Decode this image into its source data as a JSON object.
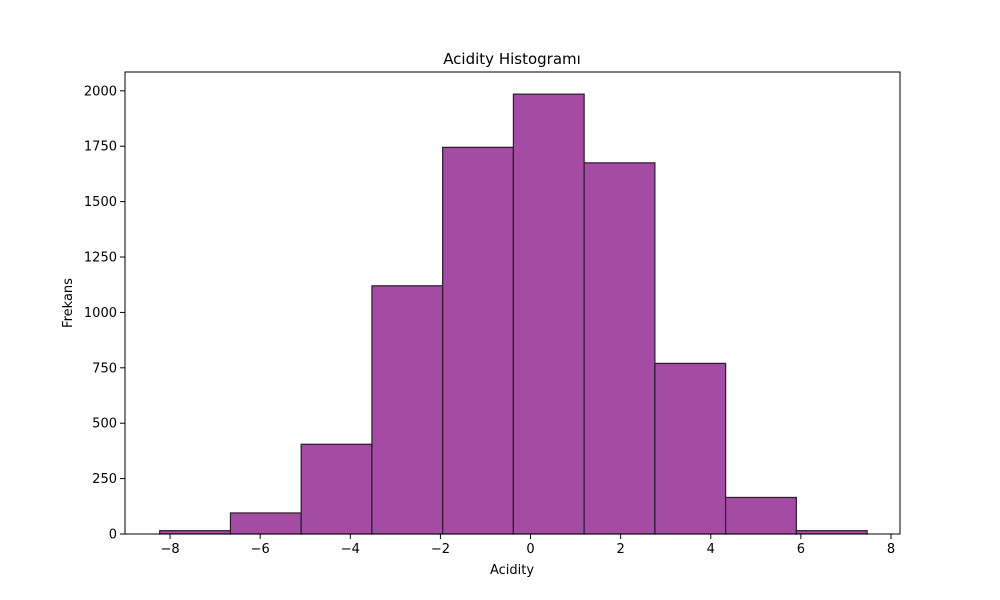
{
  "chart_data": {
    "type": "bar",
    "title": "Acidity Histogramı",
    "xlabel": "Acidity",
    "ylabel": "Frekans",
    "bins": [
      {
        "x0": -8.23,
        "x1": -6.66,
        "count": 15
      },
      {
        "x0": -6.66,
        "x1": -5.09,
        "count": 95
      },
      {
        "x0": -5.09,
        "x1": -3.52,
        "count": 405
      },
      {
        "x0": -3.52,
        "x1": -1.95,
        "count": 1120
      },
      {
        "x0": -1.95,
        "x1": -0.38,
        "count": 1745
      },
      {
        "x0": -0.38,
        "x1": 1.19,
        "count": 1985
      },
      {
        "x0": 1.19,
        "x1": 2.76,
        "count": 1675
      },
      {
        "x0": 2.76,
        "x1": 4.33,
        "count": 770
      },
      {
        "x0": 4.33,
        "x1": 5.9,
        "count": 165
      },
      {
        "x0": 5.9,
        "x1": 7.47,
        "count": 15
      }
    ],
    "xlim": [
      -9.0,
      8.2
    ],
    "ylim": [
      0,
      2085
    ],
    "xticks": [
      -8,
      -6,
      -4,
      -2,
      0,
      2,
      4,
      6,
      8
    ],
    "xtick_labels": [
      "−8",
      "−6",
      "−4",
      "−2",
      "0",
      "2",
      "4",
      "6",
      "8"
    ],
    "yticks": [
      0,
      250,
      500,
      750,
      1000,
      1250,
      1500,
      1750,
      2000
    ],
    "ytick_labels": [
      "0",
      "250",
      "500",
      "750",
      "1000",
      "1250",
      "1500",
      "1750",
      "2000"
    ],
    "bar_color": "#a44ca4",
    "edge_color": "#2a1a2a",
    "grid": false,
    "legend": "none"
  }
}
